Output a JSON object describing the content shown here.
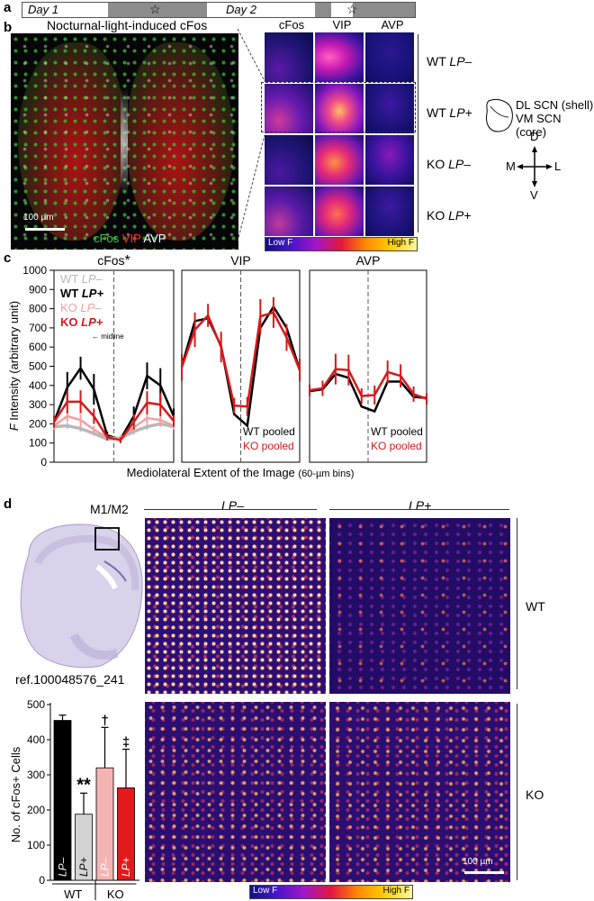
{
  "panel_letters": {
    "a": "a",
    "b": "b",
    "c": "c",
    "d": "d"
  },
  "timeline": {
    "day1": "Day 1",
    "day2": "Day 2",
    "star": "☆"
  },
  "panel_b": {
    "title": "Nocturnal-light-induced cFos",
    "scalebar": "100 µm",
    "legend": {
      "cfos": "cFos",
      "vip": "VIP",
      "avp": "AVP"
    },
    "col_headers": [
      "cFos",
      "VIP",
      "AVP"
    ],
    "row_labels": [
      {
        "geno": "WT",
        "cond": "LP–"
      },
      {
        "geno": "WT",
        "cond": "LP+"
      },
      {
        "geno": "KO",
        "cond": "LP–"
      },
      {
        "geno": "KO",
        "cond": "LP+"
      }
    ],
    "schematic": {
      "dl": "DL SCN (shell)",
      "vm": "VM SCN (core)",
      "D": "D",
      "V": "V",
      "M": "M",
      "L": "L"
    },
    "colorbar": {
      "low": "Low F",
      "high": "High F"
    }
  },
  "panel_d": {
    "region": "M1/M2",
    "ref": "ref.100048576_241",
    "col_headers": [
      "LP–",
      "LP+"
    ],
    "row_labels": [
      "WT",
      "KO"
    ],
    "scalebar": "100 µm",
    "colorbar": {
      "low": "Low F",
      "high": "High F"
    }
  },
  "chart_data": [
    {
      "type": "line",
      "title": "cFos",
      "title_mark": "*",
      "ylabel": "F Intensity (arbitrary unit)",
      "xlabel": "Mediolateral Extent of the Image (60-µm bins)",
      "ylim": [
        0,
        1000
      ],
      "yticks": [
        0,
        100,
        200,
        300,
        400,
        500,
        600,
        700,
        800,
        900,
        1000
      ],
      "annotation": "← midline",
      "x": [
        1,
        2,
        3,
        4,
        5,
        6,
        7,
        8,
        9,
        10
      ],
      "series": [
        {
          "name": "WT LP–",
          "color": "#b8b8b8",
          "values": [
            185,
            190,
            175,
            150,
            120,
            125,
            160,
            185,
            200,
            185
          ],
          "err": [
            15,
            15,
            15,
            12,
            10,
            10,
            15,
            15,
            15,
            15
          ]
        },
        {
          "name": "WT LP+",
          "color": "#000000",
          "values": [
            210,
            390,
            490,
            380,
            140,
            120,
            240,
            450,
            400,
            240
          ],
          "err": [
            30,
            80,
            60,
            80,
            20,
            15,
            50,
            70,
            90,
            40
          ]
        },
        {
          "name": "KO LP–",
          "color": "#f2a0a0",
          "values": [
            190,
            240,
            220,
            170,
            130,
            125,
            180,
            230,
            220,
            190
          ],
          "err": [
            20,
            30,
            30,
            20,
            15,
            15,
            20,
            30,
            30,
            20
          ]
        },
        {
          "name": "KO LP+",
          "color": "#d7191c",
          "values": [
            210,
            315,
            315,
            240,
            130,
            115,
            210,
            310,
            300,
            215
          ],
          "err": [
            30,
            60,
            60,
            40,
            15,
            15,
            40,
            60,
            60,
            30
          ]
        }
      ]
    },
    {
      "type": "line",
      "title": "VIP",
      "ylim": [
        0,
        1000
      ],
      "x": [
        1,
        2,
        3,
        4,
        5,
        6,
        7,
        8,
        9,
        10
      ],
      "legend": [
        "WT pooled",
        "KO pooled"
      ],
      "series": [
        {
          "name": "WT pooled",
          "color": "#000000",
          "values": [
            500,
            735,
            750,
            605,
            250,
            190,
            700,
            810,
            700,
            480
          ],
          "err": [
            0,
            0,
            0,
            0,
            0,
            0,
            0,
            0,
            0,
            0
          ]
        },
        {
          "name": "KO pooled",
          "color": "#d7191c",
          "values": [
            495,
            690,
            765,
            600,
            295,
            290,
            760,
            780,
            650,
            480
          ],
          "err": [
            70,
            90,
            60,
            80,
            40,
            50,
            90,
            80,
            70,
            60
          ]
        }
      ]
    },
    {
      "type": "line",
      "title": "AVP",
      "ylim": [
        0,
        1000
      ],
      "x": [
        1,
        2,
        3,
        4,
        5,
        6,
        7,
        8,
        9,
        10
      ],
      "legend": [
        "WT pooled",
        "KO pooled"
      ],
      "series": [
        {
          "name": "WT pooled",
          "color": "#000000",
          "values": [
            370,
            380,
            460,
            440,
            290,
            265,
            420,
            420,
            340,
            335
          ],
          "err": [
            0,
            0,
            0,
            0,
            0,
            0,
            0,
            0,
            0,
            0
          ]
        },
        {
          "name": "KO pooled",
          "color": "#d7191c",
          "values": [
            375,
            385,
            485,
            480,
            345,
            350,
            470,
            450,
            355,
            330
          ],
          "err": [
            30,
            40,
            80,
            80,
            40,
            50,
            60,
            60,
            40,
            30
          ]
        }
      ]
    },
    {
      "type": "bar",
      "ylabel": "No. of cFos+ Cells",
      "ylim": [
        0,
        500
      ],
      "yticks": [
        0,
        100,
        200,
        300,
        400,
        500
      ],
      "categories": [
        "LP–",
        "LP+",
        "LP–",
        "LP+"
      ],
      "groups": [
        {
          "label": "WT",
          "span": [
            0,
            1
          ]
        },
        {
          "label": "KO",
          "span": [
            2,
            3
          ]
        }
      ],
      "values": [
        455,
        188,
        320,
        263
      ],
      "err": [
        15,
        60,
        115,
        110
      ],
      "colors": [
        "#000000",
        "#d3d3d3",
        "#f4b4b4",
        "#e31a1c"
      ],
      "annotations": [
        "",
        "**",
        "†",
        "‡"
      ]
    }
  ]
}
